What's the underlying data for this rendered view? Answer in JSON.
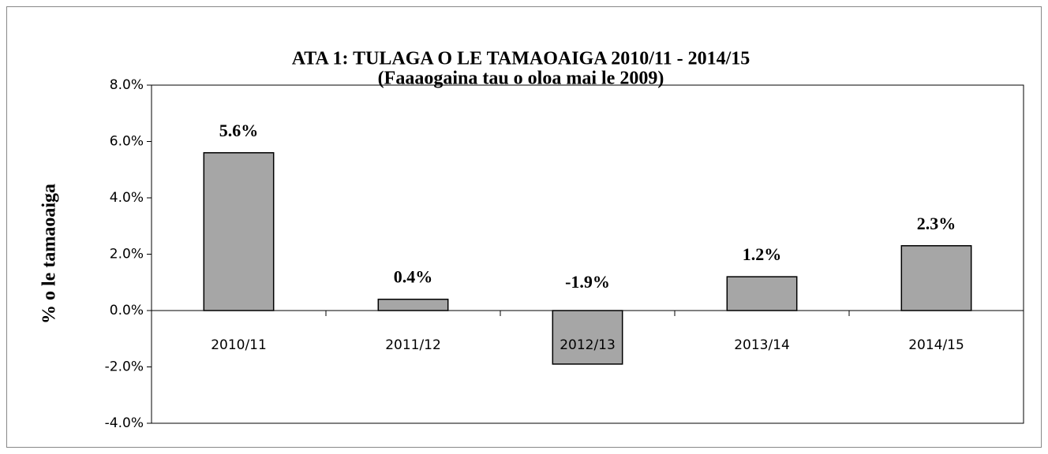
{
  "chart_data": {
    "type": "bar",
    "title": "ATA 1: TULAGA O LE TAMAOAIGA 2010/11 - 2014/15",
    "subtitle": "(Faaaogaina tau o oloa mai le 2009)",
    "y_label": "% o le tamaoaiga",
    "categories": [
      "2010/11",
      "2011/12",
      "2012/13",
      "2013/14",
      "2014/15"
    ],
    "values": [
      5.6,
      0.4,
      -1.9,
      1.2,
      2.3
    ],
    "value_labels": [
      "5.6%",
      "0.4%",
      "-1.9%",
      "1.2%",
      "2.3%"
    ],
    "color": "#a6a6a6",
    "ylim": [
      -4,
      8
    ],
    "yticks": [
      {
        "value": -4,
        "label": "-4.0%"
      },
      {
        "value": -2,
        "label": "-2.0%"
      },
      {
        "value": 0,
        "label": "0.0%"
      },
      {
        "value": 2,
        "label": "2.0%"
      },
      {
        "value": 4,
        "label": "4.0%"
      },
      {
        "value": 6,
        "label": "6.0%"
      },
      {
        "value": 8,
        "label": "8.0%"
      }
    ],
    "grid": false
  }
}
